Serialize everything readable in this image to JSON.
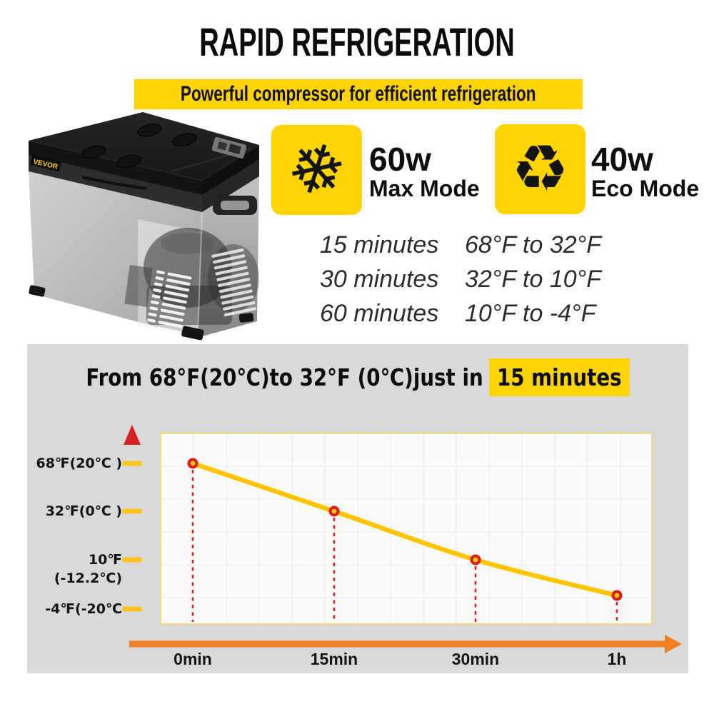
{
  "page": {
    "background": "#FFFFFF",
    "accent_yellow": "#FFD400"
  },
  "header": {
    "title": "RAPID REFRIGERATION",
    "subtitle": "Powerful compressor for efficient refrigeration"
  },
  "product": {
    "brand": "VEVOR"
  },
  "modes": [
    {
      "icon": "snowflake-icon",
      "glyph": "❄",
      "power": "60w",
      "label": "Max Mode"
    },
    {
      "icon": "recycle-icon",
      "glyph": "♻",
      "power": "40w",
      "label": "Eco Mode"
    }
  ],
  "cooling_table": {
    "rows": [
      {
        "time": "15 minutes",
        "range": "68°F to 32°F"
      },
      {
        "time": "30 minutes",
        "range": "32°F to 10°F"
      },
      {
        "time": "60 minutes",
        "range": "10°F to -4°F"
      }
    ]
  },
  "panel": {
    "headline_prefix": "From 68°F(20℃)to 32°F (0℃)just in",
    "headline_highlight": "15 minutes",
    "background": "#D9D9D9"
  },
  "chart_data": {
    "type": "line",
    "title": "Cooling temperature over time",
    "x_tick_labels": [
      "0min",
      "15min",
      "30min",
      "1h"
    ],
    "x_values_minutes": [
      0,
      15,
      30,
      60
    ],
    "y_tick_labels": [
      "68℉(20℃ )",
      "32℉(0℃ )",
      "10℉(-12.2℃)",
      "-4℉(-20℃"
    ],
    "y_tick_values_f": [
      68,
      32,
      10,
      -4
    ],
    "series": [
      {
        "name": "temperature",
        "values_f": [
          68,
          32,
          10,
          -4
        ],
        "color": "#FFC400"
      }
    ],
    "grid": true,
    "legend": false,
    "styles": {
      "marker_stroke": "#DD1A1A",
      "marker_fill": "#FFC400",
      "dashed_drop_lines": "#E01B1B",
      "axis_gradient_top": "#D92026",
      "axis_gradient_bottom": "#F08021",
      "tick_bar": "#FFC41F",
      "plot_background": "#FAFAF8",
      "plot_border": "#F1DC78",
      "gridline": "#EBEBEB"
    }
  }
}
